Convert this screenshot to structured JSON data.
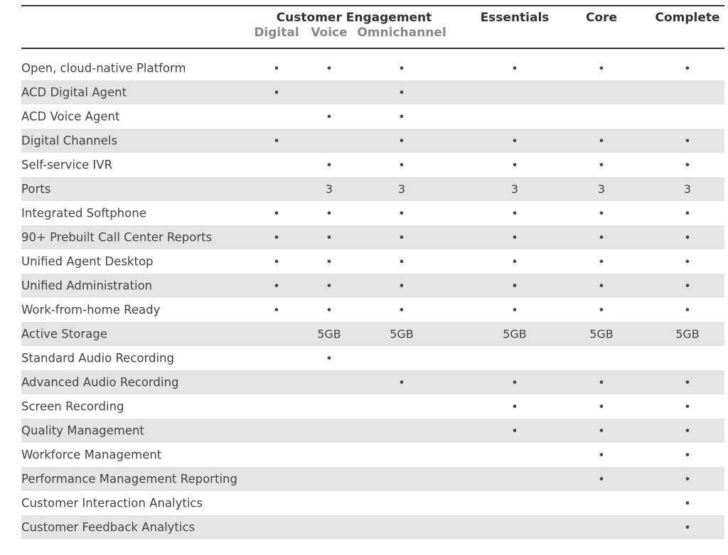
{
  "header": {
    "group": "Customer Engagement",
    "subcolumns": [
      "Digital",
      "Voice",
      "Omnichannel"
    ],
    "columns": [
      "Essentials",
      "Core",
      "Complete"
    ]
  },
  "table": {
    "rows": [
      {
        "label": "Open, cloud-native Platform",
        "cells": [
          "•",
          "•",
          "•",
          "•",
          "•",
          "•"
        ]
      },
      {
        "label": "ACD Digital Agent",
        "cells": [
          "•",
          null,
          "•",
          null,
          null,
          null
        ]
      },
      {
        "label": "ACD Voice Agent",
        "cells": [
          null,
          "•",
          "•",
          null,
          null,
          null
        ]
      },
      {
        "label": "Digital Channels",
        "cells": [
          "•",
          null,
          "•",
          "•",
          "•",
          "•"
        ]
      },
      {
        "label": "Self-service IVR",
        "cells": [
          null,
          "•",
          "•",
          "•",
          "•",
          "•"
        ]
      },
      {
        "label": "Ports",
        "cells": [
          null,
          3,
          3,
          3,
          3,
          3
        ]
      },
      {
        "label": "Integrated Softphone",
        "cells": [
          "•",
          "•",
          "•",
          "•",
          "•",
          "•"
        ]
      },
      {
        "label": "90+ Prebuilt Call Center Reports",
        "cells": [
          "•",
          "•",
          "•",
          "•",
          "•",
          "•"
        ]
      },
      {
        "label": "Unified Agent Desktop",
        "cells": [
          "•",
          "•",
          "•",
          "•",
          "•",
          "•"
        ]
      },
      {
        "label": "Unified Administration",
        "cells": [
          "•",
          "•",
          "•",
          "•",
          "•",
          "•"
        ]
      },
      {
        "label": "Work-from-home Ready",
        "cells": [
          "•",
          "•",
          "•",
          "•",
          "•",
          "•"
        ]
      },
      {
        "label": "Active Storage",
        "cells": [
          null,
          "5GB",
          "5GB",
          "5GB",
          "5GB",
          "5GB"
        ]
      },
      {
        "label": "Standard Audio Recording",
        "cells": [
          null,
          "•",
          null,
          null,
          null,
          null
        ]
      },
      {
        "label": "Advanced Audio Recording",
        "cells": [
          null,
          null,
          "•",
          "•",
          "•",
          "•"
        ]
      },
      {
        "label": "Screen Recording",
        "cells": [
          null,
          null,
          null,
          "•",
          "•",
          "•"
        ]
      },
      {
        "label": "Quality Management",
        "cells": [
          null,
          null,
          null,
          "•",
          "•",
          "•"
        ]
      },
      {
        "label": "Workforce Management",
        "cells": [
          null,
          null,
          null,
          null,
          "•",
          "•"
        ]
      },
      {
        "label": "Performance Management Reporting",
        "cells": [
          null,
          null,
          null,
          null,
          "•",
          "•"
        ]
      },
      {
        "label": "Customer Interaction Analytics",
        "cells": [
          null,
          null,
          null,
          null,
          null,
          "•"
        ]
      },
      {
        "label": "Customer Feedback Analytics",
        "cells": [
          null,
          null,
          null,
          null,
          null,
          "•"
        ]
      }
    ]
  }
}
